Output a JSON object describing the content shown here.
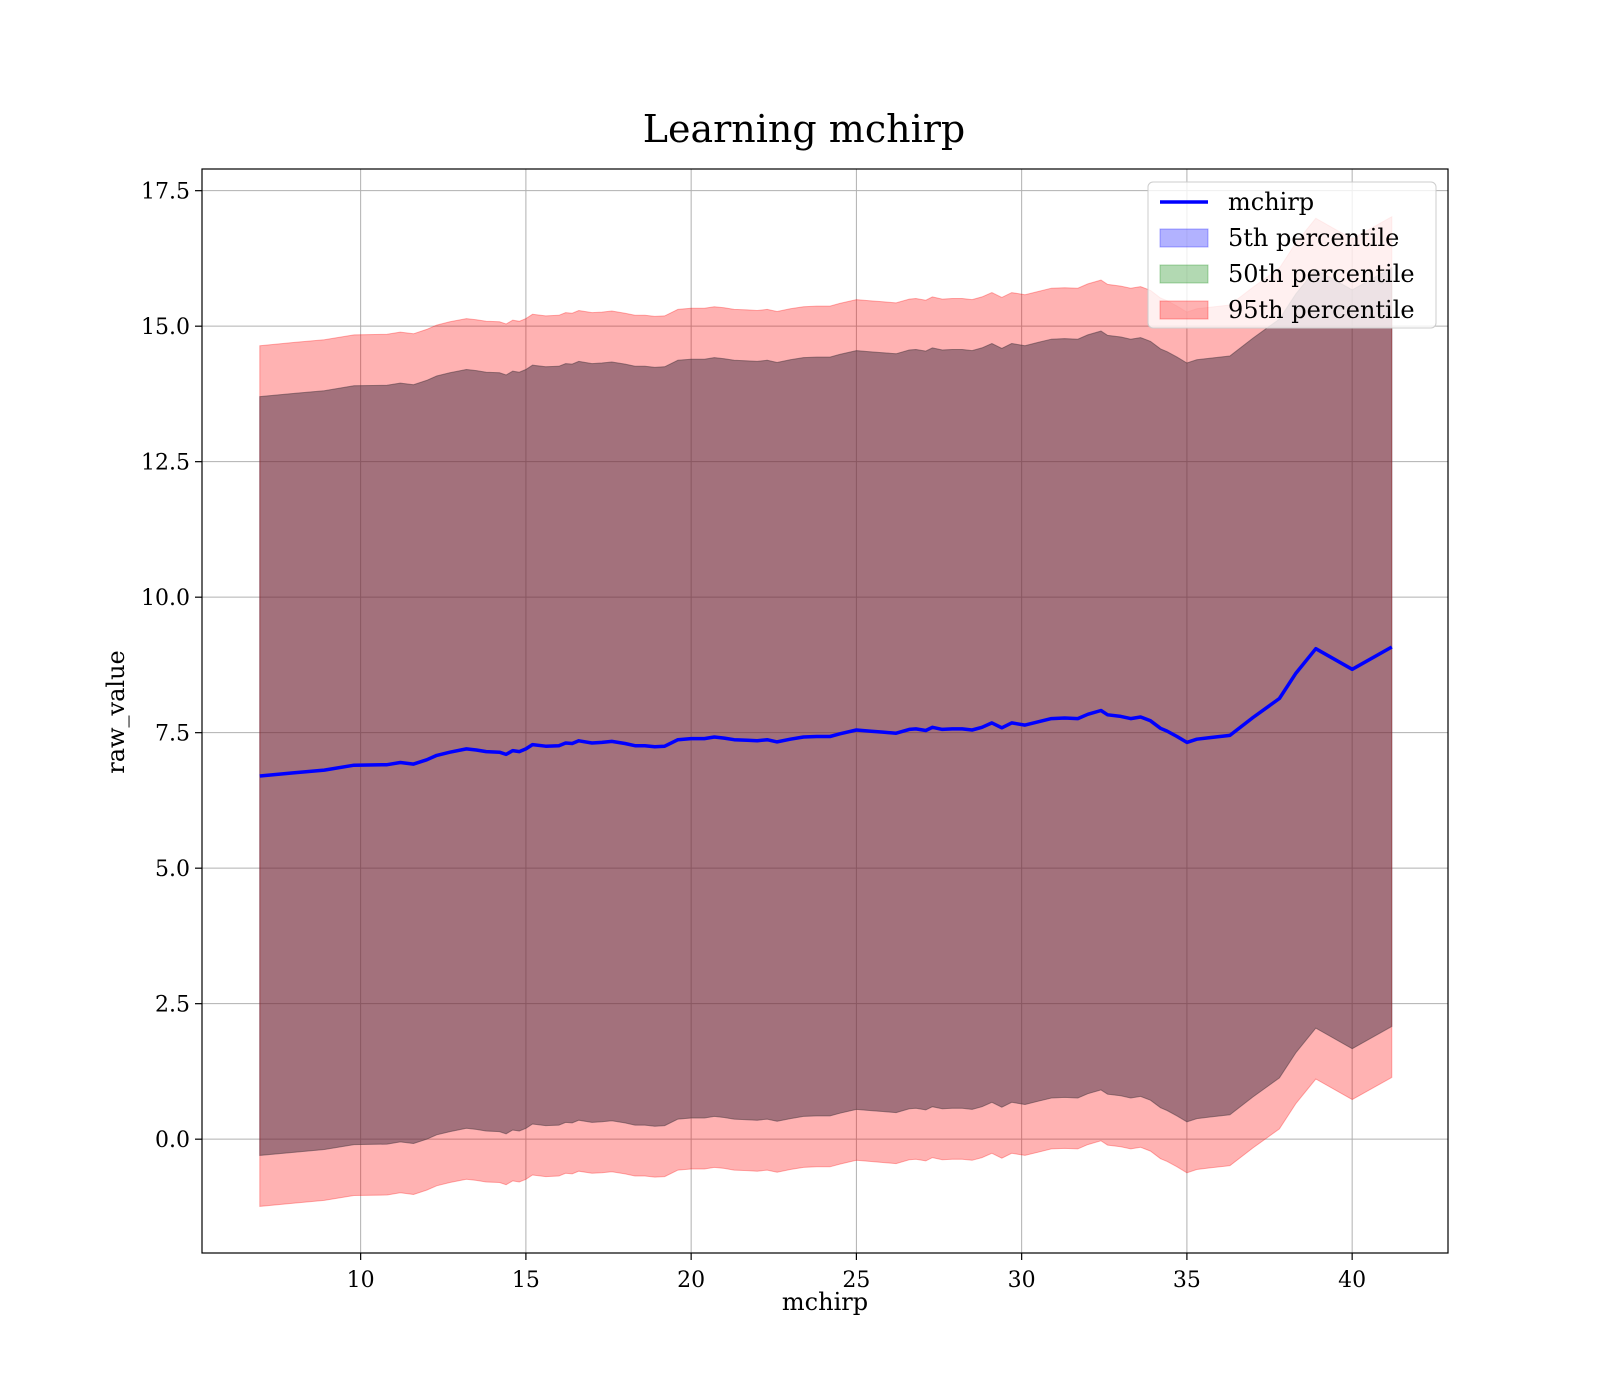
{
  "chart_data": {
    "type": "line",
    "title": "Learning mchirp",
    "xlabel": "mchirp",
    "ylabel": "raw_value",
    "xlim": [
      5.2,
      42.9
    ],
    "ylim": [
      -2.1,
      17.9
    ],
    "xticks": [
      10,
      15,
      20,
      25,
      30,
      35,
      40
    ],
    "yticks": [
      0.0,
      2.5,
      5.0,
      7.5,
      10.0,
      12.5,
      15.0,
      17.5
    ],
    "xtick_labels": [
      "10",
      "15",
      "20",
      "25",
      "30",
      "35",
      "40"
    ],
    "ytick_labels": [
      "0.0",
      "2.5",
      "5.0",
      "7.5",
      "10.0",
      "12.5",
      "15.0",
      "17.5"
    ],
    "grid": true,
    "legend_position": "top-right",
    "x": [
      6.95,
      8.0,
      8.9,
      9.8,
      10.8,
      11.2,
      11.6,
      12.0,
      12.3,
      12.7,
      13.2,
      13.5,
      13.8,
      14.2,
      14.4,
      14.6,
      14.8,
      15.0,
      15.2,
      15.6,
      16.0,
      16.2,
      16.4,
      16.6,
      17.0,
      17.3,
      17.6,
      18.0,
      18.3,
      18.6,
      18.9,
      19.2,
      19.6,
      20.0,
      20.4,
      20.7,
      21.0,
      21.3,
      21.7,
      22.0,
      22.3,
      22.6,
      23.0,
      23.4,
      23.8,
      24.2,
      24.5,
      25.0,
      25.4,
      25.8,
      26.2,
      26.6,
      26.8,
      27.1,
      27.3,
      27.6,
      27.9,
      28.2,
      28.5,
      28.8,
      29.1,
      29.4,
      29.7,
      30.1,
      30.5,
      30.9,
      31.3,
      31.7,
      32.0,
      32.4,
      32.6,
      33.0,
      33.3,
      33.6,
      33.9,
      34.2,
      34.4,
      34.7,
      35.0,
      35.3,
      35.7,
      36.3,
      37.0,
      37.8,
      38.3,
      38.9,
      40.0,
      41.2
    ],
    "series": [
      {
        "name": "mchirp",
        "kind": "line",
        "color": "#0000ff",
        "values": [
          6.7,
          6.76,
          6.81,
          6.9,
          6.91,
          6.95,
          6.92,
          7.0,
          7.08,
          7.14,
          7.2,
          7.18,
          7.15,
          7.14,
          7.1,
          7.17,
          7.15,
          7.2,
          7.28,
          7.25,
          7.26,
          7.31,
          7.3,
          7.35,
          7.31,
          7.32,
          7.34,
          7.3,
          7.26,
          7.26,
          7.24,
          7.25,
          7.37,
          7.39,
          7.39,
          7.42,
          7.4,
          7.37,
          7.36,
          7.35,
          7.37,
          7.33,
          7.38,
          7.42,
          7.43,
          7.43,
          7.48,
          7.55,
          7.53,
          7.51,
          7.49,
          7.56,
          7.57,
          7.54,
          7.6,
          7.56,
          7.57,
          7.57,
          7.55,
          7.6,
          7.68,
          7.59,
          7.68,
          7.64,
          7.7,
          7.76,
          7.77,
          7.76,
          7.84,
          7.91,
          7.83,
          7.8,
          7.76,
          7.79,
          7.72,
          7.58,
          7.53,
          7.43,
          7.32,
          7.38,
          7.41,
          7.45,
          7.78,
          8.13,
          8.6,
          9.05,
          8.67,
          9.08
        ]
      },
      {
        "name": "5th percentile",
        "kind": "band",
        "color": "#0000ff",
        "lower": [
          -0.3,
          -0.24,
          -0.19,
          -0.1,
          -0.09,
          -0.05,
          -0.08,
          0.0,
          0.08,
          0.14,
          0.2,
          0.18,
          0.15,
          0.14,
          0.1,
          0.17,
          0.15,
          0.2,
          0.28,
          0.25,
          0.26,
          0.31,
          0.3,
          0.35,
          0.31,
          0.32,
          0.34,
          0.3,
          0.26,
          0.26,
          0.24,
          0.25,
          0.37,
          0.39,
          0.39,
          0.42,
          0.4,
          0.37,
          0.36,
          0.35,
          0.37,
          0.33,
          0.38,
          0.42,
          0.43,
          0.43,
          0.48,
          0.55,
          0.53,
          0.51,
          0.49,
          0.56,
          0.57,
          0.54,
          0.6,
          0.56,
          0.57,
          0.57,
          0.55,
          0.6,
          0.68,
          0.59,
          0.68,
          0.64,
          0.7,
          0.76,
          0.77,
          0.76,
          0.84,
          0.91,
          0.83,
          0.8,
          0.76,
          0.79,
          0.72,
          0.58,
          0.53,
          0.43,
          0.32,
          0.38,
          0.41,
          0.45,
          0.78,
          1.13,
          1.6,
          2.05,
          1.67,
          2.08
        ],
        "upper": [
          13.7,
          13.76,
          13.81,
          13.9,
          13.91,
          13.95,
          13.92,
          14.0,
          14.08,
          14.14,
          14.2,
          14.18,
          14.15,
          14.14,
          14.1,
          14.17,
          14.15,
          14.2,
          14.28,
          14.25,
          14.26,
          14.31,
          14.3,
          14.35,
          14.31,
          14.32,
          14.34,
          14.3,
          14.26,
          14.26,
          14.24,
          14.25,
          14.37,
          14.39,
          14.39,
          14.42,
          14.4,
          14.37,
          14.36,
          14.35,
          14.37,
          14.33,
          14.38,
          14.42,
          14.43,
          14.43,
          14.48,
          14.55,
          14.53,
          14.51,
          14.49,
          14.56,
          14.57,
          14.54,
          14.6,
          14.56,
          14.57,
          14.57,
          14.55,
          14.6,
          14.68,
          14.59,
          14.68,
          14.64,
          14.7,
          14.76,
          14.77,
          14.76,
          14.84,
          14.91,
          14.83,
          14.8,
          14.76,
          14.79,
          14.72,
          14.58,
          14.53,
          14.43,
          14.32,
          14.38,
          14.41,
          14.45,
          14.78,
          15.13,
          15.6,
          16.05,
          15.67,
          16.08
        ]
      },
      {
        "name": "50th percentile",
        "kind": "band",
        "color": "#008000",
        "lower": [
          -0.3,
          -0.24,
          -0.19,
          -0.1,
          -0.09,
          -0.05,
          -0.08,
          0.0,
          0.08,
          0.14,
          0.2,
          0.18,
          0.15,
          0.14,
          0.1,
          0.17,
          0.15,
          0.2,
          0.28,
          0.25,
          0.26,
          0.31,
          0.3,
          0.35,
          0.31,
          0.32,
          0.34,
          0.3,
          0.26,
          0.26,
          0.24,
          0.25,
          0.37,
          0.39,
          0.39,
          0.42,
          0.4,
          0.37,
          0.36,
          0.35,
          0.37,
          0.33,
          0.38,
          0.42,
          0.43,
          0.43,
          0.48,
          0.55,
          0.53,
          0.51,
          0.49,
          0.56,
          0.57,
          0.54,
          0.6,
          0.56,
          0.57,
          0.57,
          0.55,
          0.6,
          0.68,
          0.59,
          0.68,
          0.64,
          0.7,
          0.76,
          0.77,
          0.76,
          0.84,
          0.91,
          0.83,
          0.8,
          0.76,
          0.79,
          0.72,
          0.58,
          0.53,
          0.43,
          0.32,
          0.38,
          0.41,
          0.45,
          0.78,
          1.13,
          1.6,
          2.05,
          1.67,
          2.08
        ],
        "upper": [
          13.7,
          13.76,
          13.81,
          13.9,
          13.91,
          13.95,
          13.92,
          14.0,
          14.08,
          14.14,
          14.2,
          14.18,
          14.15,
          14.14,
          14.1,
          14.17,
          14.15,
          14.2,
          14.28,
          14.25,
          14.26,
          14.31,
          14.3,
          14.35,
          14.31,
          14.32,
          14.34,
          14.3,
          14.26,
          14.26,
          14.24,
          14.25,
          14.37,
          14.39,
          14.39,
          14.42,
          14.4,
          14.37,
          14.36,
          14.35,
          14.37,
          14.33,
          14.38,
          14.42,
          14.43,
          14.43,
          14.48,
          14.55,
          14.53,
          14.51,
          14.49,
          14.56,
          14.57,
          14.54,
          14.6,
          14.56,
          14.57,
          14.57,
          14.55,
          14.6,
          14.68,
          14.59,
          14.68,
          14.64,
          14.7,
          14.76,
          14.77,
          14.76,
          14.84,
          14.91,
          14.83,
          14.8,
          14.76,
          14.79,
          14.72,
          14.58,
          14.53,
          14.43,
          14.32,
          14.38,
          14.41,
          14.45,
          14.78,
          15.13,
          15.6,
          16.05,
          15.67,
          16.08
        ]
      },
      {
        "name": "95th percentile",
        "kind": "band",
        "color": "#ff0000",
        "lower": [
          -1.24,
          -1.18,
          -1.13,
          -1.04,
          -1.03,
          -0.99,
          -1.02,
          -0.94,
          -0.86,
          -0.8,
          -0.74,
          -0.76,
          -0.79,
          -0.8,
          -0.84,
          -0.77,
          -0.79,
          -0.74,
          -0.66,
          -0.69,
          -0.68,
          -0.63,
          -0.64,
          -0.59,
          -0.63,
          -0.62,
          -0.6,
          -0.64,
          -0.68,
          -0.68,
          -0.7,
          -0.69,
          -0.57,
          -0.55,
          -0.55,
          -0.52,
          -0.54,
          -0.57,
          -0.58,
          -0.59,
          -0.57,
          -0.61,
          -0.56,
          -0.52,
          -0.51,
          -0.51,
          -0.46,
          -0.39,
          -0.41,
          -0.43,
          -0.45,
          -0.38,
          -0.37,
          -0.4,
          -0.34,
          -0.38,
          -0.37,
          -0.37,
          -0.39,
          -0.34,
          -0.26,
          -0.35,
          -0.26,
          -0.3,
          -0.24,
          -0.18,
          -0.17,
          -0.18,
          -0.1,
          -0.03,
          -0.11,
          -0.14,
          -0.18,
          -0.15,
          -0.22,
          -0.36,
          -0.41,
          -0.51,
          -0.62,
          -0.56,
          -0.53,
          -0.49,
          -0.16,
          0.19,
          0.66,
          1.11,
          0.73,
          1.14
        ],
        "upper": [
          14.64,
          14.7,
          14.75,
          14.84,
          14.85,
          14.89,
          14.86,
          14.94,
          15.02,
          15.08,
          15.14,
          15.12,
          15.09,
          15.08,
          15.04,
          15.11,
          15.09,
          15.14,
          15.22,
          15.19,
          15.2,
          15.25,
          15.24,
          15.29,
          15.25,
          15.26,
          15.28,
          15.24,
          15.2,
          15.2,
          15.18,
          15.19,
          15.31,
          15.33,
          15.33,
          15.36,
          15.34,
          15.31,
          15.3,
          15.29,
          15.31,
          15.27,
          15.32,
          15.36,
          15.37,
          15.37,
          15.42,
          15.49,
          15.47,
          15.45,
          15.43,
          15.5,
          15.51,
          15.48,
          15.54,
          15.5,
          15.51,
          15.51,
          15.49,
          15.54,
          15.62,
          15.53,
          15.62,
          15.58,
          15.64,
          15.7,
          15.71,
          15.7,
          15.78,
          15.85,
          15.77,
          15.74,
          15.7,
          15.73,
          15.66,
          15.52,
          15.47,
          15.37,
          15.26,
          15.32,
          15.35,
          15.39,
          15.72,
          16.07,
          16.54,
          16.99,
          16.61,
          17.02
        ]
      }
    ]
  }
}
